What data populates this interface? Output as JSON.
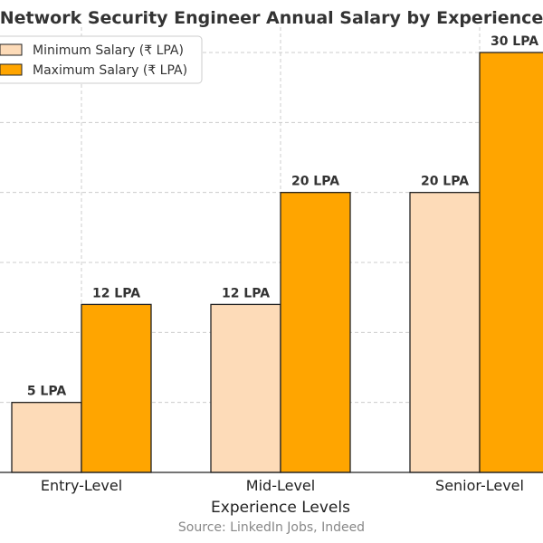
{
  "chart_data": {
    "type": "bar",
    "title": "Network Security Engineer Annual Salary by Experience",
    "xlabel": "Experience Levels",
    "ylabel": "",
    "categories": [
      "Entry-Level",
      "Mid-Level",
      "Senior-Level"
    ],
    "series": [
      {
        "name": "Minimum Salary (₹ LPA)",
        "values": [
          5,
          12,
          20
        ],
        "labels": [
          "5 LPA",
          "12 LPA",
          "20 LPA"
        ],
        "color": "#FDDBB8"
      },
      {
        "name": "Maximum Salary (₹ LPA)",
        "values": [
          12,
          20,
          30
        ],
        "labels": [
          "12 LPA",
          "20 LPA",
          "30 LPA"
        ],
        "color": "#FFA500"
      }
    ],
    "ylim": [
      0,
      31.5
    ],
    "grid": true,
    "legend_position": "top-left",
    "source": "Source: LinkedIn Jobs, Indeed"
  }
}
